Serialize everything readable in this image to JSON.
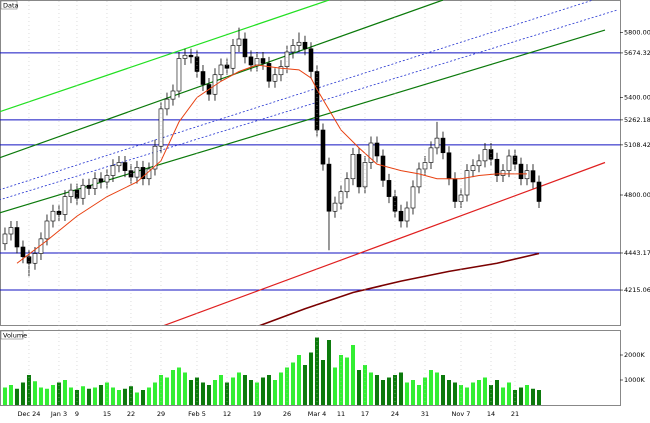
{
  "chart_data": [
    {
      "type": "candlestick",
      "title": "Data",
      "xlim": [
        -0.83,
        102.5
      ],
      "ylim": [
        4000,
        6000
      ],
      "yticks": [
        {
          "value": 5800,
          "label": "5800.00"
        },
        5674.32,
        {
          "value": 5400,
          "label": "5400.00"
        },
        5262.18,
        5108.42,
        {
          "value": 4800,
          "label": "4800.00"
        },
        4443.17,
        4215.06
      ],
      "xticks": [
        {
          "value": 4,
          "label": "Dec 24"
        },
        {
          "value": 9,
          "label": "Jan 3"
        },
        {
          "value": 12,
          "label": "9"
        },
        {
          "value": 17,
          "label": "15"
        },
        {
          "value": 21,
          "label": "22"
        },
        {
          "value": 26,
          "label": "29"
        },
        {
          "value": 32,
          "label": "Feb 5"
        },
        {
          "value": 37,
          "label": "12"
        },
        {
          "value": 42,
          "label": "19"
        },
        {
          "value": 47,
          "label": "26"
        },
        {
          "value": 52,
          "label": "Mar 4"
        },
        {
          "value": 56,
          "label": "11"
        },
        {
          "value": 60,
          "label": "17"
        },
        {
          "value": 65,
          "label": "24"
        },
        {
          "value": 70,
          "label": "31"
        },
        {
          "value": 76,
          "label": "Nov 7"
        },
        {
          "value": 81,
          "label": "14"
        },
        {
          "value": 85,
          "label": "21"
        }
      ],
      "up_color": "#ffffff",
      "down_color": "#000000",
      "level_color": "#1010c0",
      "levels": [
        5674.32,
        5262.18,
        5108.42,
        4443.17,
        4215.06
      ],
      "open": [
        4500,
        4560,
        4600,
        4480,
        4420,
        4380,
        4440,
        4530,
        4640,
        4700,
        4680,
        4790,
        4830,
        4780,
        4860,
        4840,
        4900,
        4880,
        4920,
        4980,
        5000,
        4950,
        4910,
        4970,
        4900,
        4960,
        5100,
        5330,
        5390,
        5440,
        5640,
        5660,
        5650,
        5560,
        5480,
        5420,
        5540,
        5600,
        5580,
        5720,
        5760,
        5650,
        5600,
        5640,
        5610,
        5500,
        5540,
        5590,
        5680,
        5720,
        5740,
        5700,
        5560,
        5200,
        4990,
        4700,
        4750,
        4820,
        4900,
        5050,
        4850,
        5000,
        5120,
        5040,
        4890,
        4790,
        4700,
        4640,
        4720,
        4850,
        4960,
        5000,
        5090,
        5150,
        5060,
        4900,
        4760,
        4800,
        4950,
        4980,
        5010,
        5080,
        5020,
        4920,
        4950,
        5040,
        4990,
        4900,
        4950,
        4880
      ],
      "high": [
        4600,
        4640,
        4640,
        4520,
        4460,
        4480,
        4570,
        4680,
        4740,
        4740,
        4830,
        4870,
        4870,
        4900,
        4900,
        4940,
        4940,
        4960,
        5020,
        5040,
        5040,
        4990,
        5010,
        5010,
        5000,
        5140,
        5370,
        5430,
        5480,
        5680,
        5700,
        5700,
        5690,
        5600,
        5520,
        5580,
        5640,
        5640,
        5760,
        5830,
        5800,
        5690,
        5680,
        5680,
        5650,
        5580,
        5630,
        5720,
        5760,
        5800,
        5780,
        5740,
        5600,
        5240,
        5030,
        4790,
        4860,
        4940,
        5090,
        5090,
        5040,
        5160,
        5160,
        5080,
        4930,
        4830,
        4740,
        4760,
        4890,
        5000,
        5040,
        5130,
        5250,
        5190,
        5100,
        4940,
        4840,
        4990,
        5020,
        5050,
        5120,
        5120,
        5060,
        4990,
        5080,
        5080,
        5030,
        4990,
        4990,
        4920
      ],
      "low": [
        4460,
        4520,
        4440,
        4380,
        4300,
        4340,
        4400,
        4490,
        4600,
        4640,
        4640,
        4750,
        4740,
        4740,
        4800,
        4800,
        4840,
        4840,
        4880,
        4940,
        4910,
        4870,
        4870,
        4860,
        4860,
        4920,
        5060,
        5290,
        5350,
        5400,
        5600,
        5610,
        5520,
        5440,
        5380,
        5380,
        5500,
        5540,
        5540,
        5680,
        5610,
        5560,
        5560,
        5570,
        5460,
        5460,
        5500,
        5550,
        5640,
        5680,
        5660,
        5520,
        5160,
        4950,
        4460,
        4660,
        4710,
        4780,
        4860,
        4810,
        4810,
        4960,
        5000,
        4850,
        4750,
        4660,
        4600,
        4600,
        4680,
        4810,
        4920,
        4960,
        5050,
        5020,
        4860,
        4720,
        4720,
        4760,
        4910,
        4940,
        4970,
        4980,
        4880,
        4880,
        4910,
        4950,
        4860,
        4860,
        4840,
        4720
      ],
      "close": [
        4560,
        4600,
        4480,
        4420,
        4380,
        4440,
        4530,
        4640,
        4700,
        4680,
        4790,
        4830,
        4780,
        4860,
        4840,
        4900,
        4880,
        4920,
        4980,
        5000,
        4950,
        4910,
        4970,
        4900,
        4960,
        5100,
        5330,
        5390,
        5440,
        5640,
        5660,
        5650,
        5560,
        5480,
        5420,
        5540,
        5600,
        5580,
        5720,
        5760,
        5650,
        5600,
        5640,
        5610,
        5500,
        5540,
        5590,
        5680,
        5720,
        5740,
        5700,
        5560,
        5200,
        4990,
        4700,
        4750,
        4820,
        4900,
        5050,
        4850,
        5000,
        5120,
        5040,
        4890,
        4790,
        4700,
        4640,
        4720,
        4850,
        4960,
        5000,
        5090,
        5150,
        5060,
        4900,
        4760,
        4800,
        4950,
        4980,
        5010,
        5080,
        5020,
        4920,
        4950,
        5040,
        4990,
        4900,
        4950,
        4880,
        4760
      ],
      "lines": [
        {
          "color": "#22e022",
          "x": [
            -1,
            54
          ],
          "y": [
            5311,
            6000
          ]
        },
        {
          "color": "#0b7a0b",
          "x": [
            -1,
            73
          ],
          "y": [
            5028,
            6000
          ]
        },
        {
          "color": "#0b7a0b",
          "x": [
            -1,
            100
          ],
          "y": [
            4689,
            5815
          ]
        },
        {
          "color": "#2030d0",
          "dash": true,
          "x": [
            -1,
            98
          ],
          "y": [
            4831,
            6000
          ]
        },
        {
          "color": "#2030d0",
          "dash": true,
          "x": [
            -1,
            102
          ],
          "y": [
            4769,
            5938
          ]
        },
        {
          "color": "#e02020",
          "x": [
            26,
            100
          ],
          "y": [
            3990,
            5000
          ]
        }
      ],
      "series": [
        {
          "color": "#e84010",
          "x": [
            2,
            7,
            12,
            17,
            22,
            26,
            29,
            32,
            36,
            39,
            42,
            46,
            49,
            51,
            52,
            56,
            59,
            62,
            66,
            69,
            72,
            76,
            79,
            82,
            87
          ],
          "values": [
            4380,
            4520,
            4670,
            4790,
            4880,
            5010,
            5250,
            5400,
            5500,
            5560,
            5600,
            5580,
            5570,
            5520,
            5450,
            5200,
            5090,
            4990,
            4950,
            4930,
            4900,
            4900,
            4920,
            4930,
            4930
          ]
        },
        {
          "color": "#7a0000",
          "x": [
            42,
            50,
            58,
            66,
            74,
            82,
            89
          ],
          "values": [
            3990,
            4100,
            4200,
            4270,
            4330,
            4380,
            4440
          ]
        }
      ]
    },
    {
      "type": "bar",
      "title": "Volume",
      "xlim": [
        -0.83,
        102.5
      ],
      "ylim": [
        0,
        3000
      ],
      "yticks": [
        {
          "value": 1000,
          "label": "1000K"
        },
        {
          "value": 2000,
          "label": "2000K"
        }
      ],
      "up_color": "#33ee33",
      "down_color": "#0c7a0c",
      "values": [
        700,
        800,
        650,
        900,
        1200,
        950,
        700,
        650,
        800,
        900,
        1000,
        700,
        600,
        750,
        650,
        700,
        800,
        900,
        700,
        600,
        650,
        750,
        500,
        600,
        700,
        900,
        1200,
        1100,
        1400,
        1500,
        1300,
        1000,
        1100,
        900,
        800,
        1000,
        1200,
        900,
        1100,
        1300,
        1200,
        1000,
        900,
        1100,
        1200,
        1000,
        1300,
        1500,
        1700,
        2000,
        1600,
        2100,
        2700,
        1800,
        2600,
        1500,
        2000,
        1900,
        2400,
        1400,
        1600,
        1300,
        1200,
        1000,
        1100,
        1200,
        1300,
        900,
        1000,
        800,
        1100,
        1400,
        1300,
        1200,
        1000,
        900,
        800,
        700,
        900,
        1000,
        1100,
        800,
        1000,
        700,
        900,
        600,
        700,
        800,
        650,
        600
      ]
    }
  ]
}
